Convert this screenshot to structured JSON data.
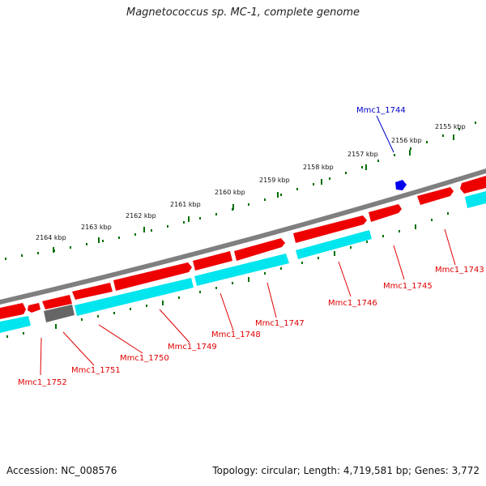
{
  "title": "Magnetococcus sp. MC-1, complete genome",
  "footer": {
    "accession": "Accession: NC_008576",
    "summary": "Topology: circular; Length: 4,719,581 bp; Genes: 3,772"
  },
  "kbp_labels": [
    "2155 kbp",
    "2156 kbp",
    "2157 kbp",
    "2158 kbp",
    "2159 kbp",
    "2160 kbp",
    "2161 kbp",
    "2162 kbp",
    "2163 kbp",
    "2164 kbp"
  ],
  "gene_labels": [
    "Mmc1_1743",
    "Mmc1_1744",
    "Mmc1_1745",
    "Mmc1_1746",
    "Mmc1_1747",
    "Mmc1_1748",
    "Mmc1_1749",
    "Mmc1_1750",
    "Mmc1_1751",
    "Mmc1_1752"
  ],
  "colors": {
    "forward_gene": "#ee0000",
    "cds_bar": "#00e5ee",
    "highlight_gene": "#666666",
    "pointer_gene": "#0000ee",
    "backbone": "#7f7f7f",
    "ticks": "#007000",
    "label_red": "#e00000",
    "label_blue": "#0000cc"
  }
}
